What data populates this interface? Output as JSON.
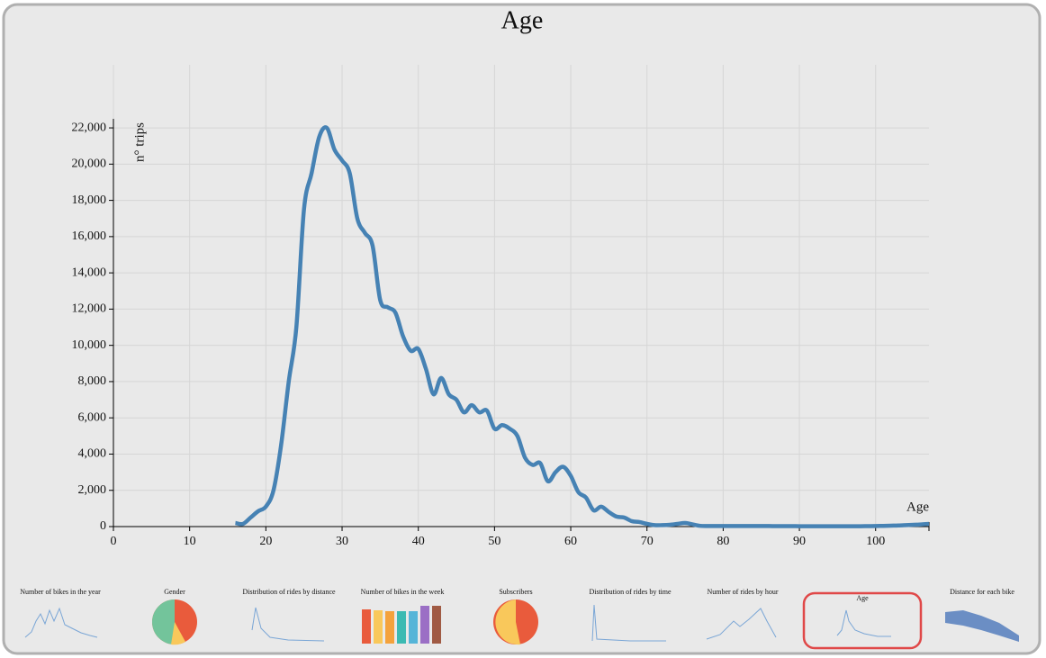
{
  "chart_data": {
    "type": "line",
    "title": "Age",
    "x_label": "Age",
    "y_label": "n° trips",
    "x": [
      16,
      17,
      18,
      19,
      20,
      21,
      22,
      23,
      24,
      25,
      26,
      27,
      28,
      29,
      30,
      31,
      32,
      33,
      34,
      35,
      36,
      37,
      38,
      39,
      40,
      41,
      42,
      43,
      44,
      45,
      46,
      47,
      48,
      49,
      50,
      51,
      52,
      53,
      54,
      55,
      56,
      57,
      58,
      59,
      60,
      61,
      62,
      63,
      64,
      65,
      66,
      67,
      68,
      69,
      70,
      71,
      72,
      73,
      74,
      75,
      76,
      77,
      78,
      79,
      80,
      81,
      82,
      83,
      84,
      85,
      86,
      87,
      88,
      89,
      90,
      91,
      92,
      93,
      94,
      95,
      96,
      97,
      98,
      99,
      100,
      101,
      102,
      103,
      104,
      105,
      106,
      107
    ],
    "series": [
      {
        "name": "n° trips",
        "color": "#4682b4",
        "values": [
          200,
          150,
          500,
          850,
          1100,
          2000,
          4500,
          8000,
          11000,
          17500,
          19500,
          21500,
          22000,
          20800,
          20200,
          19500,
          17000,
          16200,
          15500,
          12500,
          12100,
          11800,
          10500,
          9700,
          9800,
          8700,
          7300,
          8200,
          7300,
          7000,
          6300,
          6700,
          6300,
          6400,
          5400,
          5600,
          5400,
          5000,
          3800,
          3400,
          3500,
          2500,
          3000,
          3300,
          2800,
          1900,
          1600,
          900,
          1100,
          800,
          550,
          500,
          300,
          250,
          150,
          80,
          80,
          100,
          150,
          200,
          120,
          40,
          30,
          30,
          30,
          30,
          30,
          30,
          30,
          30,
          30,
          25,
          25,
          25,
          20,
          20,
          20,
          20,
          20,
          20,
          20,
          20,
          20,
          25,
          30,
          40,
          50,
          60,
          80,
          100,
          120,
          150
        ]
      }
    ],
    "xlim": [
      0,
      107
    ],
    "ylim": [
      0,
      22500
    ],
    "xticks": [
      0,
      10,
      20,
      30,
      40,
      50,
      60,
      70,
      80,
      90,
      100
    ],
    "yticks": [
      0,
      {
        "value": 2000,
        "label": "2,000"
      },
      {
        "value": 4000,
        "label": "4,000"
      },
      {
        "value": 6000,
        "label": "6,000"
      },
      {
        "value": 8000,
        "label": "8,000"
      },
      {
        "value": 10000,
        "label": "10,000"
      },
      {
        "value": 12000,
        "label": "12,000"
      },
      {
        "value": 14000,
        "label": "14,000"
      },
      {
        "value": 16000,
        "label": "16,000"
      },
      {
        "value": 18000,
        "label": "18,000"
      },
      {
        "value": 20000,
        "label": "20,000"
      },
      {
        "value": 22000,
        "label": "22,000"
      }
    ],
    "grid": true
  },
  "thumbnails": [
    "Number of bikes in the year",
    "Gender",
    "Distribution of rides by distance",
    "Number of bikes in the week",
    "Subscribers",
    "Distribution of rides by time",
    "Number of rides by hour",
    "Age",
    "Distance for each bike"
  ]
}
